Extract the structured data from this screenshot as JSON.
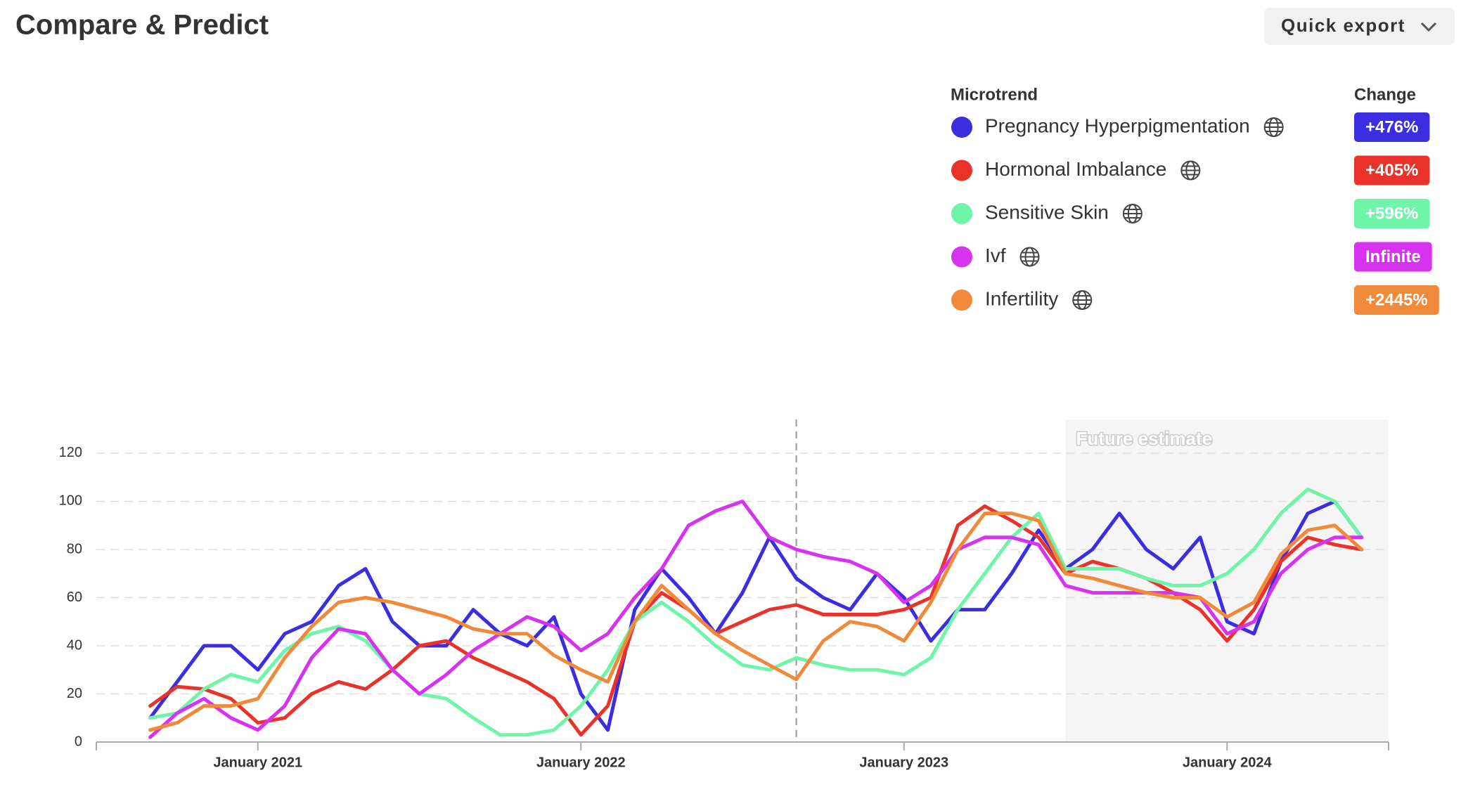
{
  "header": {
    "title": "Compare & Predict",
    "button": "Quick export"
  },
  "legend": {
    "name_header": "Microtrend",
    "change_header": "Change"
  },
  "chart_data": {
    "type": "line",
    "annotation": "Future estimate",
    "forecast_start": "2023-07",
    "divider": "2022-09",
    "x": [
      "2020-09",
      "2020-10",
      "2020-11",
      "2020-12",
      "2021-01",
      "2021-02",
      "2021-03",
      "2021-04",
      "2021-05",
      "2021-06",
      "2021-07",
      "2021-08",
      "2021-09",
      "2021-10",
      "2021-11",
      "2021-12",
      "2022-01",
      "2022-02",
      "2022-03",
      "2022-04",
      "2022-05",
      "2022-06",
      "2022-07",
      "2022-08",
      "2022-09",
      "2022-10",
      "2022-11",
      "2022-12",
      "2023-01",
      "2023-02",
      "2023-03",
      "2023-04",
      "2023-05",
      "2023-06",
      "2023-07",
      "2023-08",
      "2023-09",
      "2023-10",
      "2023-11",
      "2023-12",
      "2024-01",
      "2024-02",
      "2024-03",
      "2024-04",
      "2024-05",
      "2024-06"
    ],
    "xlim": [
      "2020-07",
      "2024-07"
    ],
    "xticks": [
      {
        "value": "2021-01",
        "label": "January 2021"
      },
      {
        "value": "2022-01",
        "label": "January 2022"
      },
      {
        "value": "2023-01",
        "label": "January 2023"
      },
      {
        "value": "2024-01",
        "label": "January 2024"
      }
    ],
    "ylim": [
      0,
      134
    ],
    "yticks": [
      0,
      20,
      40,
      60,
      80,
      100,
      120
    ],
    "grid": true,
    "series": [
      {
        "name": "Pregnancy Hyperpigmentation",
        "color": "#3b2ee0",
        "change": "+476%",
        "values": [
          10,
          25,
          40,
          40,
          30,
          45,
          50,
          65,
          72,
          50,
          40,
          40,
          55,
          45,
          40,
          52,
          20,
          5,
          55,
          72,
          60,
          45,
          62,
          85,
          68,
          60,
          55,
          70,
          60,
          42,
          55,
          55,
          70,
          88,
          72,
          80,
          95,
          80,
          72,
          85,
          50,
          45,
          75,
          95,
          100,
          85
        ]
      },
      {
        "name": "Hormonal Imbalance",
        "color": "#e8322a",
        "change": "+405%",
        "values": [
          15,
          23,
          22,
          18,
          8,
          10,
          20,
          25,
          22,
          30,
          40,
          42,
          35,
          30,
          25,
          18,
          3,
          15,
          50,
          62,
          55,
          45,
          50,
          55,
          57,
          53,
          53,
          53,
          55,
          60,
          90,
          98,
          92,
          85,
          70,
          75,
          72,
          68,
          62,
          55,
          42,
          55,
          75,
          85,
          82,
          80
        ]
      },
      {
        "name": "Sensitive Skin",
        "color": "#6ef5a8",
        "change": "+596%",
        "values": [
          10,
          12,
          22,
          28,
          25,
          38,
          45,
          48,
          42,
          30,
          20,
          18,
          10,
          3,
          3,
          5,
          15,
          30,
          50,
          58,
          50,
          40,
          32,
          30,
          35,
          32,
          30,
          30,
          28,
          35,
          55,
          70,
          85,
          95,
          72,
          72,
          72,
          68,
          65,
          65,
          70,
          80,
          95,
          105,
          100,
          85
        ]
      },
      {
        "name": "Ivf",
        "color": "#d632f0",
        "change": "Infinite",
        "values": [
          2,
          12,
          18,
          10,
          5,
          15,
          35,
          47,
          45,
          30,
          20,
          28,
          38,
          45,
          52,
          48,
          38,
          45,
          60,
          72,
          90,
          96,
          100,
          85,
          80,
          77,
          75,
          70,
          58,
          65,
          80,
          85,
          85,
          82,
          65,
          62,
          62,
          62,
          62,
          60,
          45,
          50,
          70,
          80,
          85,
          85
        ]
      },
      {
        "name": "Infertility",
        "color": "#f08a3a",
        "change": "+2445%",
        "values": [
          5,
          8,
          15,
          15,
          18,
          35,
          48,
          58,
          60,
          58,
          55,
          52,
          47,
          45,
          45,
          36,
          30,
          25,
          50,
          65,
          55,
          45,
          38,
          32,
          26,
          42,
          50,
          48,
          42,
          58,
          80,
          95,
          95,
          92,
          70,
          68,
          65,
          62,
          60,
          60,
          52,
          58,
          78,
          88,
          90,
          80
        ]
      }
    ]
  }
}
